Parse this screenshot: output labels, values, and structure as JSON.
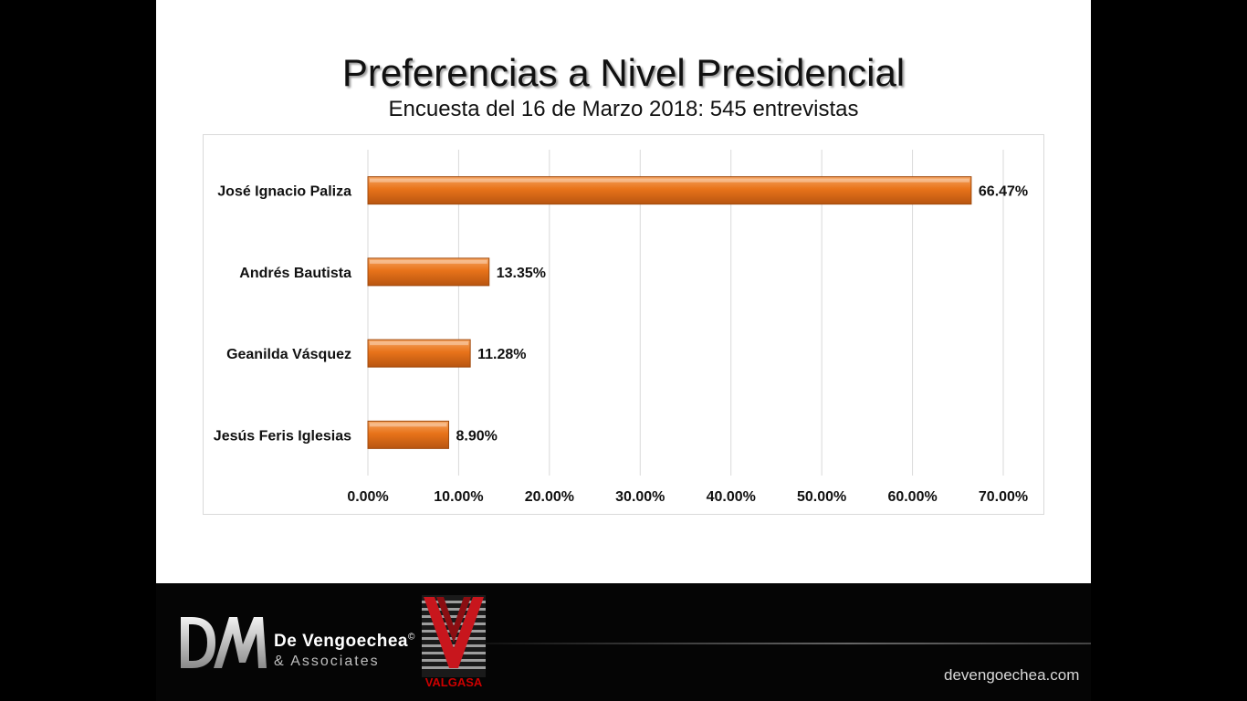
{
  "title": "Preferencias a Nivel Presidencial",
  "subtitle": "Encuesta del 16 de Marzo 2018: 545 entrevistas",
  "chart_data": {
    "type": "bar",
    "orientation": "horizontal",
    "categories": [
      "José Ignacio Paliza",
      "Andrés Bautista",
      "Geanilda Vásquez",
      "Jesús Feris Iglesias"
    ],
    "values": [
      66.47,
      13.35,
      11.28,
      8.9
    ],
    "data_labels": [
      "66.47%",
      "13.35%",
      "11.28%",
      "8.90%"
    ],
    "xlim": [
      0,
      70
    ],
    "x_ticks": [
      "0.00%",
      "10.00%",
      "20.00%",
      "30.00%",
      "40.00%",
      "50.00%",
      "60.00%",
      "70.00%"
    ],
    "grid": true,
    "bar_color": "#E8731A"
  },
  "footer": {
    "brand_name": "De Vengoechea",
    "brand_mark": "©",
    "brand_sub": "& Associates",
    "valgasa": "VALGASA",
    "website": "devengoechea.com"
  }
}
